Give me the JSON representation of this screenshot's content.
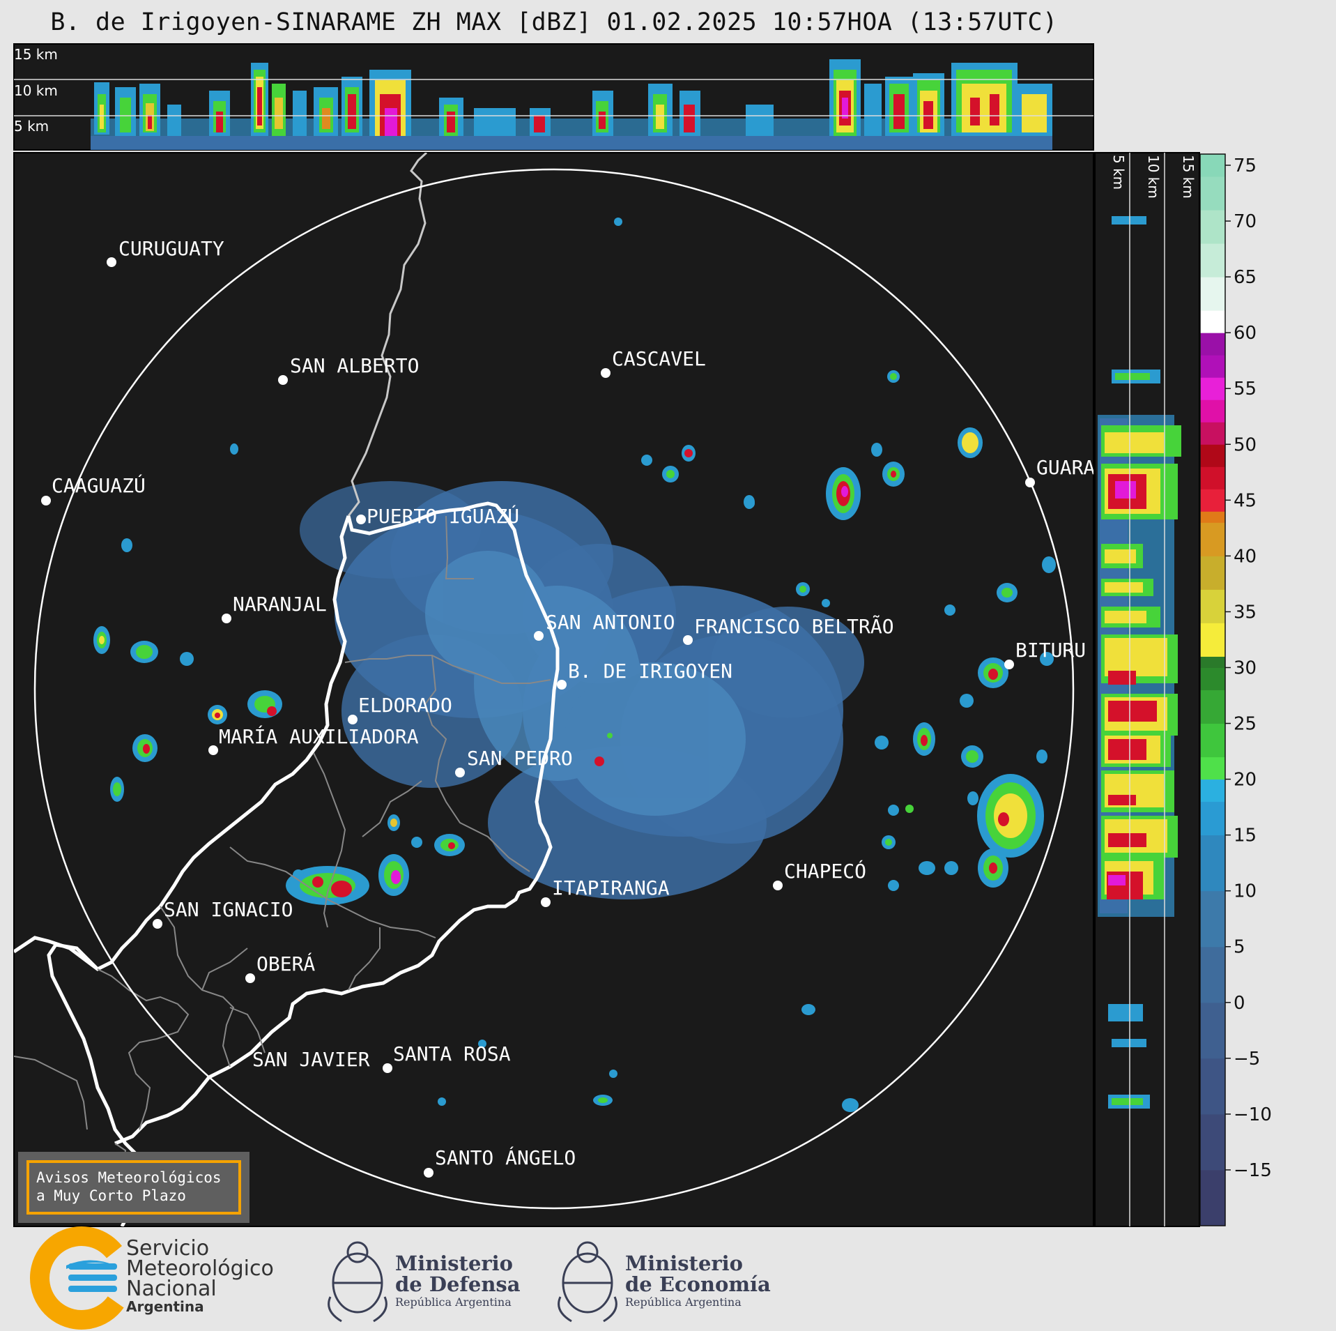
{
  "title": "B. de Irigoyen-SINARAME ZH MAX [dBZ] 01.02.2025 10:57HOA (13:57UTC)",
  "altitude_labels": [
    "15 km",
    "10 km",
    "5 km"
  ],
  "colorbar": {
    "ticks": [
      75,
      70,
      65,
      60,
      55,
      50,
      45,
      40,
      35,
      30,
      25,
      20,
      15,
      10,
      5,
      0,
      -5,
      -10,
      -15
    ],
    "tick_labels": [
      "75",
      "70",
      "65",
      "60",
      "55",
      "50",
      "45",
      "40",
      "35",
      "30",
      "25",
      "20",
      "15",
      "10",
      "5",
      "0",
      "−5",
      "−10",
      "−15"
    ]
  },
  "cities": [
    {
      "name": "CURUGUATY"
    },
    {
      "name": "SAN ALBERTO"
    },
    {
      "name": "CASCAVEL"
    },
    {
      "name": "CAAGUAZÚ"
    },
    {
      "name": "GUARA"
    },
    {
      "name": "PUERTO IGUAZÚ"
    },
    {
      "name": "NARANJAL"
    },
    {
      "name": "SAN ANTONIO"
    },
    {
      "name": "FRANCISCO BELTRÃO"
    },
    {
      "name": "B. DE IRIGOYEN"
    },
    {
      "name": "BITURU"
    },
    {
      "name": "ELDORADO"
    },
    {
      "name": "MARÍA AUXILIADORA"
    },
    {
      "name": "SAN PEDRO"
    },
    {
      "name": "CHAPECÓ"
    },
    {
      "name": "SAN IGNACIO"
    },
    {
      "name": "ITAPIRANGA"
    },
    {
      "name": "OBERÁ"
    },
    {
      "name": "SAN JAVIER"
    },
    {
      "name": "SANTA ROSA"
    },
    {
      "name": "SANTO ÁNGELO"
    }
  ],
  "avisos": {
    "line1": "Avisos Meteorológicos",
    "line2": "a Muy Corto Plazo"
  },
  "logos": {
    "smn": {
      "line1": "Servicio",
      "line2": "Meteorológico",
      "line3": "Nacional",
      "line4": "Argentina"
    },
    "defensa": {
      "line1": "Ministerio",
      "line2": "de Defensa",
      "line3": "República Argentina"
    },
    "economia": {
      "line1": "Ministerio",
      "line2": "de Economía",
      "line3": "República Argentina"
    }
  },
  "colors": {
    "background": "#1a1a1a",
    "page": "#e6e6e6",
    "accent": "#f5a300",
    "smn_blue": "#2aa0dc",
    "smn_orange": "#f7a600"
  }
}
